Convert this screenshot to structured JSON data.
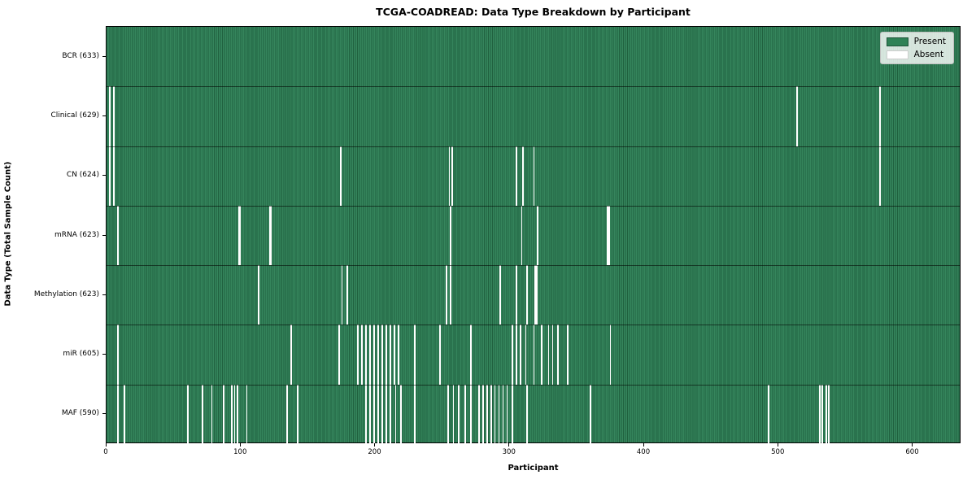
{
  "chart_data": {
    "type": "heatmap",
    "title": "TCGA-COADREAD: Data Type Breakdown by Participant",
    "xlabel": "Participant",
    "ylabel": "Data Type (Total Sample Count)",
    "legend": {
      "present_label": "Present",
      "absent_label": "Absent"
    },
    "legend_position": "upper right",
    "x_ticks": [
      0,
      100,
      200,
      300,
      400,
      500,
      600
    ],
    "x_range": [
      0,
      636
    ],
    "grid": false,
    "colors": {
      "present": "#2f8256",
      "present_light": "#35855c",
      "present_dark": "#20613f",
      "absent": "#ffffff",
      "row_separator": "rgba(0,0,0,0.55)"
    },
    "rows": [
      {
        "label": "BCR (633)",
        "data_type": "BCR",
        "total": 633,
        "absent": []
      },
      {
        "label": "Clinical (629)",
        "data_type": "Clinical",
        "total": 629,
        "absent": [
          2,
          5,
          514,
          576
        ]
      },
      {
        "label": "CN (624)",
        "data_type": "CN",
        "total": 624,
        "absent": [
          2,
          5,
          174,
          255,
          257,
          305,
          310,
          318,
          576
        ]
      },
      {
        "label": "mRNA (623)",
        "data_type": "mRNA",
        "total": 623,
        "absent": [
          8,
          98,
          99,
          121,
          122,
          256,
          309,
          321,
          373,
          374
        ]
      },
      {
        "label": "Methylation (623)",
        "data_type": "Methylation",
        "total": 623,
        "absent": [
          113,
          175,
          179,
          253,
          256,
          293,
          305,
          313,
          319,
          320
        ]
      },
      {
        "label": "miR (605)",
        "data_type": "miR",
        "total": 605,
        "absent": [
          8,
          137,
          173,
          187,
          190,
          193,
          196,
          199,
          202,
          205,
          208,
          211,
          214,
          217,
          229,
          248,
          271,
          302,
          305,
          308,
          312,
          318,
          324,
          329,
          332,
          336,
          343,
          375
        ]
      },
      {
        "label": "MAF (590)",
        "data_type": "MAF",
        "total": 590,
        "absent": [
          8,
          13,
          60,
          71,
          78,
          87,
          93,
          95,
          97,
          104,
          134,
          142,
          193,
          196,
          199,
          202,
          205,
          208,
          211,
          215,
          219,
          229,
          254,
          258,
          262,
          267,
          271,
          277,
          280,
          283,
          286,
          289,
          292,
          295,
          298,
          302,
          313,
          360,
          493,
          531,
          533,
          536,
          538
        ]
      }
    ]
  }
}
